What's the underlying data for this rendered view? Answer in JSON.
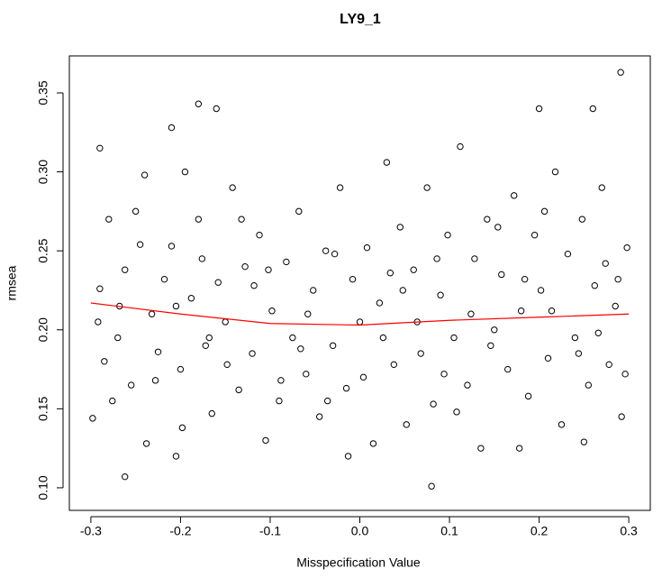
{
  "chart_data": {
    "type": "scatter",
    "title": "LY9_1",
    "x_label": "Misspecification Value",
    "y_label": "rmsea",
    "xlim": [
      -0.324,
      0.324
    ],
    "ylim": [
      0.0857,
      0.3734
    ],
    "xticks": [
      -0.3,
      -0.2,
      -0.1,
      {
        "value": 0,
        "label": "0.0"
      },
      0.1,
      0.2,
      0.3
    ],
    "yticks": [
      {
        "value": 0.1,
        "label": "0.10"
      },
      0.15,
      {
        "value": 0.2,
        "label": "0.20"
      },
      0.25,
      {
        "value": 0.3,
        "label": "0.30"
      },
      0.35
    ],
    "points": {
      "color": "#000000",
      "x": [
        -0.298,
        -0.29,
        -0.285,
        -0.28,
        -0.27,
        -0.262,
        -0.255,
        -0.245,
        -0.24,
        -0.232,
        -0.225,
        -0.218,
        -0.21,
        -0.2,
        -0.195,
        -0.188,
        -0.18,
        -0.172,
        -0.165,
        -0.158,
        -0.15,
        -0.142,
        -0.135,
        -0.128,
        -0.12,
        -0.112,
        -0.105,
        -0.098,
        -0.09,
        -0.082,
        -0.075,
        -0.068,
        -0.06,
        -0.052,
        -0.045,
        -0.038,
        -0.03,
        -0.022,
        -0.015,
        -0.008,
        0.0,
        0.008,
        0.015,
        0.022,
        0.03,
        0.038,
        0.045,
        0.052,
        0.06,
        0.068,
        0.075,
        0.082,
        0.09,
        0.098,
        0.105,
        0.112,
        0.12,
        0.128,
        0.135,
        0.142,
        0.15,
        0.158,
        0.165,
        0.172,
        0.18,
        0.188,
        0.195,
        0.202,
        0.21,
        0.218,
        0.225,
        0.232,
        0.24,
        0.248,
        0.255,
        0.262,
        0.27,
        0.278,
        0.285,
        0.292,
        0.298,
        -0.292,
        -0.276,
        -0.25,
        -0.228,
        -0.205,
        -0.176,
        -0.148,
        -0.118,
        -0.088,
        -0.058,
        -0.028,
        0.004,
        0.034,
        0.064,
        0.094,
        0.124,
        0.154,
        0.184,
        0.214,
        0.244,
        0.274,
        0.296,
        -0.268,
        -0.198,
        -0.132,
        -0.066,
        0.026,
        0.086,
        0.146,
        0.206,
        0.266,
        -0.238,
        -0.168,
        -0.102,
        -0.036,
        0.048,
        0.108,
        0.178,
        0.288,
        0.291,
        -0.18,
        -0.16,
        0.2,
        0.26,
        -0.21,
        -0.29,
        0.08,
        -0.262,
        -0.013,
        -0.205,
        0.25
      ],
      "y": [
        0.144,
        0.226,
        0.18,
        0.27,
        0.195,
        0.238,
        0.165,
        0.254,
        0.298,
        0.21,
        0.186,
        0.232,
        0.253,
        0.175,
        0.3,
        0.22,
        0.27,
        0.19,
        0.147,
        0.23,
        0.205,
        0.29,
        0.162,
        0.24,
        0.185,
        0.26,
        0.13,
        0.212,
        0.155,
        0.243,
        0.195,
        0.275,
        0.172,
        0.225,
        0.145,
        0.25,
        0.19,
        0.29,
        0.163,
        0.232,
        0.205,
        0.252,
        0.128,
        0.217,
        0.306,
        0.178,
        0.265,
        0.14,
        0.238,
        0.185,
        0.29,
        0.153,
        0.222,
        0.26,
        0.195,
        0.316,
        0.165,
        0.245,
        0.125,
        0.27,
        0.2,
        0.235,
        0.175,
        0.285,
        0.212,
        0.158,
        0.26,
        0.225,
        0.182,
        0.3,
        0.14,
        0.248,
        0.195,
        0.27,
        0.165,
        0.228,
        0.29,
        0.178,
        0.215,
        0.145,
        0.252,
        0.205,
        0.155,
        0.275,
        0.168,
        0.215,
        0.245,
        0.178,
        0.228,
        0.168,
        0.21,
        0.248,
        0.17,
        0.236,
        0.205,
        0.172,
        0.21,
        0.265,
        0.232,
        0.212,
        0.185,
        0.242,
        0.172,
        0.215,
        0.138,
        0.27,
        0.188,
        0.195,
        0.245,
        0.19,
        0.275,
        0.198,
        0.128,
        0.195,
        0.238,
        0.155,
        0.225,
        0.148,
        0.125,
        0.232,
        0.363,
        0.343,
        0.34,
        0.34,
        0.34,
        0.328,
        0.315,
        0.101,
        0.107,
        0.12,
        0.12,
        0.129
      ]
    },
    "smooth": {
      "color": "#ff0000",
      "x": [
        -0.3,
        -0.2,
        -0.1,
        0.0,
        0.1,
        0.2,
        0.3
      ],
      "y": [
        0.217,
        0.21,
        0.204,
        0.203,
        0.206,
        0.208,
        0.21
      ]
    }
  }
}
